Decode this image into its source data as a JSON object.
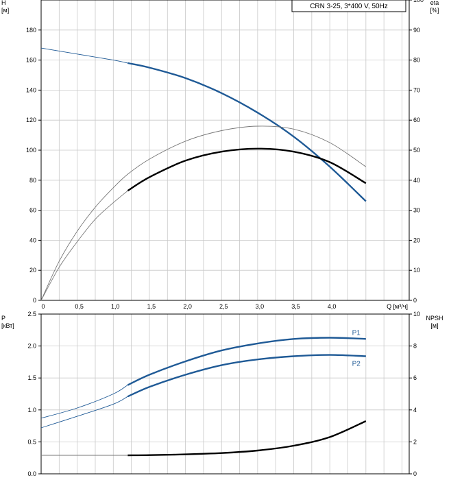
{
  "legend_box": "CRN 3-25, 3*400 V, 50Hz",
  "colors": {
    "blue": "#1f5a96",
    "black": "#000000",
    "grid": "#c8c8c8",
    "thin": "#777777"
  },
  "chart_data": [
    {
      "type": "line",
      "panel": "head-efficiency",
      "x_label": "Q [м³/ч]",
      "y_left_label": [
        "H",
        "[м]"
      ],
      "y_right_label": [
        "eta",
        "[%]"
      ],
      "xlim": [
        0,
        5.1
      ],
      "ylim_left": [
        0,
        200
      ],
      "ylim_right": [
        0,
        100
      ],
      "x_ticks": [
        "0",
        "0,5",
        "1,0",
        "1,5",
        "2,0",
        "2,5",
        "3,0",
        "3,5",
        "4,0"
      ],
      "y_left_ticks": [
        "0",
        "20",
        "40",
        "60",
        "80",
        "100",
        "120",
        "140",
        "160",
        "180"
      ],
      "y_right_ticks": [
        "0",
        "10",
        "20",
        "30",
        "40",
        "50",
        "60",
        "70",
        "80",
        "90",
        "100"
      ],
      "grid": true,
      "series": [
        {
          "id": "H",
          "axis": "left",
          "color": "blue",
          "x": [
            0,
            0.5,
            1.0,
            1.2,
            1.5,
            2.0,
            2.5,
            3.0,
            3.5,
            4.0,
            4.5
          ],
          "y": [
            168,
            164,
            160,
            158,
            155,
            148,
            138,
            125,
            109,
            89,
            66
          ],
          "bold_from": 1.2
        },
        {
          "id": "eta-total",
          "axis": "right",
          "color": "black",
          "x": [
            0,
            0.25,
            0.5,
            0.75,
            1.0,
            1.2,
            1.5,
            2.0,
            2.5,
            3.0,
            3.5,
            4.0,
            4.5
          ],
          "y": [
            0,
            13,
            23,
            31,
            37.5,
            42,
            47,
            53,
            56.5,
            58,
            57,
            52.5,
            44.5
          ],
          "bold_from": 99
        },
        {
          "id": "eta-pump",
          "axis": "right",
          "color": "black",
          "x": [
            0,
            0.25,
            0.5,
            0.75,
            1.0,
            1.2,
            1.5,
            2.0,
            2.5,
            3.0,
            3.5,
            4.0,
            4.5
          ],
          "y": [
            0,
            11,
            19.5,
            27,
            32.5,
            36.5,
            41,
            46.5,
            49.5,
            50.5,
            49.5,
            46,
            39
          ],
          "bold_from": 1.2
        }
      ]
    },
    {
      "type": "line",
      "panel": "power-npsh",
      "y_left_label": [
        "P",
        "[кВт]"
      ],
      "y_right_label": [
        "NPSH",
        "[м]"
      ],
      "xlim": [
        0,
        5.1
      ],
      "ylim_left": [
        0,
        2.5
      ],
      "ylim_right": [
        0,
        10
      ],
      "y_left_ticks": [
        "0.0",
        "0.5",
        "1.0",
        "1.5",
        "2.0",
        "2.5"
      ],
      "y_right_ticks": [
        "0",
        "2",
        "4",
        "6",
        "8",
        "10"
      ],
      "grid": true,
      "series": [
        {
          "id": "P1",
          "name": "P1",
          "axis": "left",
          "color": "blue",
          "x": [
            0,
            0.5,
            1.0,
            1.2,
            1.5,
            2.0,
            2.5,
            3.0,
            3.5,
            4.0,
            4.5
          ],
          "y": [
            0.87,
            1.03,
            1.25,
            1.39,
            1.55,
            1.76,
            1.93,
            2.04,
            2.11,
            2.13,
            2.11
          ],
          "bold_from": 1.2
        },
        {
          "id": "P2",
          "name": "P2",
          "axis": "left",
          "color": "blue",
          "x": [
            0,
            0.5,
            1.0,
            1.2,
            1.5,
            2.0,
            2.5,
            3.0,
            3.5,
            4.0,
            4.5
          ],
          "y": [
            0.72,
            0.9,
            1.09,
            1.21,
            1.36,
            1.55,
            1.7,
            1.79,
            1.84,
            1.86,
            1.84
          ],
          "bold_from": 1.2
        },
        {
          "id": "NPSH",
          "axis": "right",
          "color": "black",
          "x": [
            0,
            0.5,
            1.0,
            1.2,
            1.5,
            2.0,
            2.5,
            3.0,
            3.5,
            4.0,
            4.5
          ],
          "y": [
            1.16,
            1.16,
            1.16,
            1.16,
            1.17,
            1.22,
            1.3,
            1.46,
            1.76,
            2.3,
            3.3
          ],
          "bold_from": 1.2
        }
      ]
    }
  ]
}
